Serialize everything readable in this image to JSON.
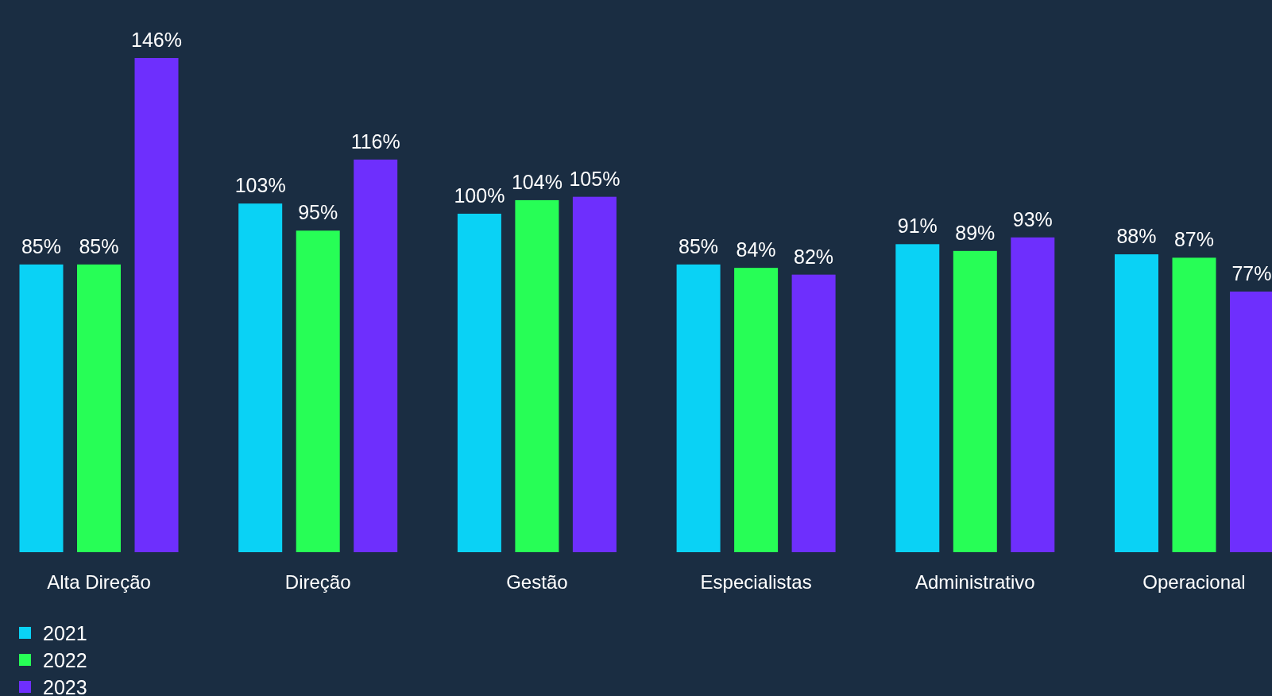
{
  "chart_data": {
    "type": "bar",
    "categories": [
      "Alta Direção",
      "Direção",
      "Gestão",
      "Especialistas",
      "Administrativo",
      "Operacional"
    ],
    "series": [
      {
        "name": "2021",
        "color": "#0ad2f5",
        "values": [
          85,
          103,
          100,
          85,
          91,
          88
        ],
        "value_labels": [
          "85%",
          "103%",
          "100%",
          "85%",
          "91%",
          "88%"
        ]
      },
      {
        "name": "2022",
        "color": "#27fe56",
        "values": [
          85,
          95,
          104,
          84,
          89,
          87
        ],
        "value_labels": [
          "85%",
          "95%",
          "104%",
          "84%",
          "89%",
          "87%"
        ]
      },
      {
        "name": "2023",
        "color": "#6e2ffd",
        "values": [
          146,
          116,
          105,
          82,
          93,
          77
        ],
        "value_labels": [
          "146%",
          "116%",
          "105%",
          "82%",
          "93%",
          "77%"
        ]
      }
    ],
    "legend": "bottom left"
  }
}
